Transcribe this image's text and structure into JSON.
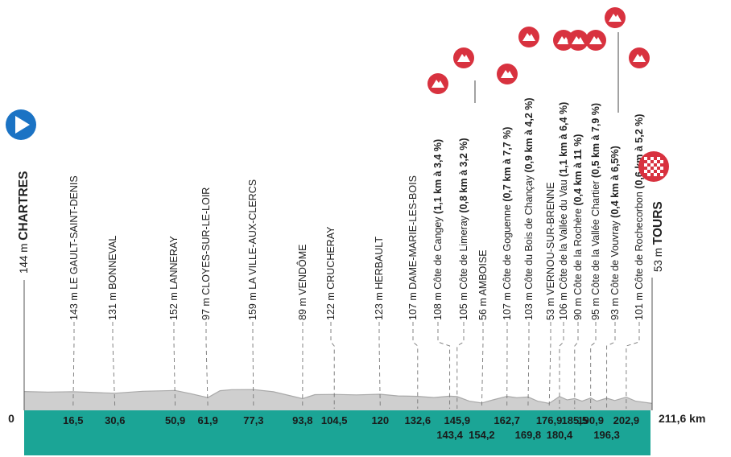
{
  "start": {
    "altitude": "144 m",
    "name": "CHARTRES",
    "km": "0",
    "icon": "play-arrow-icon"
  },
  "finish": {
    "altitude": "53 m",
    "name": "TOURS",
    "km": "211,6 km",
    "icon": "checkered-flag-icon"
  },
  "colors": {
    "ribbon": "#1ba596",
    "profile_fill": "#cfcfcf",
    "profile_top": "#e6e6e6",
    "climb": "#d8323f",
    "start_marker": "#1b73c4",
    "text": "#222222",
    "guide": "#777777"
  },
  "points": [
    {
      "label": "143 m LE GAULT-SAINT-DENIS",
      "km": 16.5,
      "km_text": "16,5"
    },
    {
      "label": "131 m BONNEVAL",
      "km": 30.6,
      "km_text": "30,6"
    },
    {
      "label": "152 m LANNERAY",
      "km": 50.9,
      "km_text": "50,9"
    },
    {
      "label": "97 m CLOYES-SUR-LE-LOIR",
      "km": 61.9,
      "km_text": "61,9"
    },
    {
      "label": "159 m LA VILLE-AUX-CLERCS",
      "km": 77.3,
      "km_text": "77,3"
    },
    {
      "label": "89 m VENDÔME",
      "km": 93.8,
      "km_text": "93,8"
    },
    {
      "label": "122 m CRUCHERAY",
      "km": 104.5,
      "km_text": "104,5"
    },
    {
      "label": "123 m HERBAULT",
      "km": 120,
      "km_text": "120"
    },
    {
      "label": "107 m DAME-MARIE-LES-BOIS",
      "km": 132.6,
      "km_text": "132,6"
    },
    {
      "label": "108 m Côte de Cangey",
      "bold": " (1,1 km à 3,4 %)",
      "km": 143.4,
      "km_text": "143,4",
      "climb": true
    },
    {
      "label": "105 m Côte de Limeray",
      "bold": " (0,8 km à 3,2 %)",
      "km": 145.9,
      "km_text": "145,9",
      "climb": true
    },
    {
      "label": "56 m AMBOISE",
      "km": 154.2,
      "km_text": "154,2"
    },
    {
      "label": "107 m Côte de Goguenne",
      "bold": " (0,7 km à 7,7 %)",
      "km": 162.7,
      "km_text": "162,7",
      "climb": true
    },
    {
      "label": "103 m Côte du Bois de Chançay",
      "bold": " (0,9 km à 4,2 %)",
      "km": 169.8,
      "km_text": "169,8",
      "climb": true
    },
    {
      "label": "53 m VERNOU-SUR-BRENNE",
      "km": 176.9,
      "km_text": "176,9"
    },
    {
      "label": "106 m Côte de la Vallée du Vau",
      "bold": " (1,1 km à 6,4 %)",
      "km": 180.4,
      "km_text": "180,4",
      "climb": true
    },
    {
      "label": "90 m Côte de la Rochère",
      "bold": " (0,4 km à 11 %)",
      "km": 185.5,
      "km_text": "185,5",
      "climb": true
    },
    {
      "label": "95 m Côte de la Vallée Chartier",
      "bold": " (0,5 km à 7,9 %)",
      "km": 190.9,
      "km_text": "190,9",
      "climb": true
    },
    {
      "label": "93 m Côte de Vouvray",
      "bold": " (0,4 km à 6,5%)",
      "km": 196.3,
      "km_text": "196,3",
      "climb": true
    },
    {
      "label": "101 m Côte de Rochecorbon",
      "bold": " (0,6 km à 5,2 %)",
      "km": 202.9,
      "km_text": "202,9",
      "climb": true
    }
  ],
  "climb_icon": "mountain-icon"
}
